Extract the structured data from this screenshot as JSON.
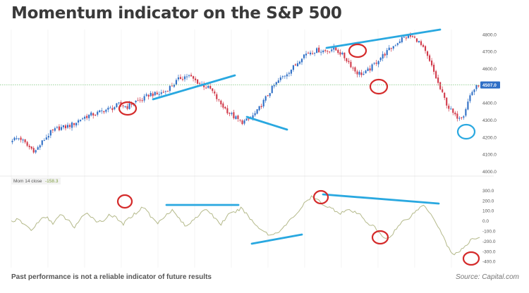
{
  "page": {
    "title": "Momentum indicator on the S&P 500",
    "footer_note": "Past performance is not a reliable indicator of future results",
    "source": "Source: Capital.com"
  },
  "colors": {
    "up_candle": "#2f6fc6",
    "down_candle": "#d13a4a",
    "momentum_line": "#b4b98a",
    "trend_line": "#29a8e0",
    "circle_red": "#d42a2a",
    "circle_blue": "#29a8e0",
    "current_price_line": "#7fc77f",
    "price_tag": "#2f6fc6",
    "grid": "#ececec"
  },
  "chart_data": [
    {
      "type": "candlestick",
      "title": "",
      "series": [
        {
          "name": "S&P 500",
          "values": []
        }
      ],
      "ylim": [
        4000,
        4830
      ],
      "y_ticks": [
        "4800.0",
        "4700.0",
        "4600.0",
        "4500.0",
        "4400.0",
        "4300.0",
        "4200.0",
        "4100.0",
        "4000.0"
      ],
      "current_price_label": "4507.0",
      "current_price": 4507,
      "candle_count": 220,
      "approx_closes": [
        4190,
        4198,
        4150,
        4120,
        4180,
        4230,
        4255,
        4262,
        4280,
        4310,
        4330,
        4340,
        4360,
        4370,
        4395,
        4378,
        4410,
        4420,
        4455,
        4452,
        4470,
        4510,
        4548,
        4562,
        4530,
        4505,
        4480,
        4410,
        4360,
        4320,
        4290,
        4305,
        4350,
        4420,
        4490,
        4540,
        4580,
        4620,
        4680,
        4700,
        4710,
        4705,
        4720,
        4690,
        4640,
        4580,
        4570,
        4610,
        4660,
        4700,
        4740,
        4780,
        4790,
        4770,
        4700,
        4600,
        4480,
        4380,
        4320,
        4330,
        4460,
        4510
      ],
      "legend": "none",
      "grid": true
    },
    {
      "type": "line",
      "title": "",
      "series": [
        {
          "name": "Mom 14 close",
          "values": []
        }
      ],
      "legend_label": "Mom 14 close",
      "legend_value": "-158.3",
      "ylim": [
        -430,
        320
      ],
      "y_ticks": [
        "300.0",
        "200.0",
        "100.0",
        "0.0",
        "-100.0",
        "-200.0",
        "-300.0",
        "-400.0"
      ],
      "approx_values": [
        0,
        15,
        -40,
        -90,
        10,
        40,
        -20,
        60,
        20,
        -60,
        30,
        80,
        10,
        -10,
        70,
        30,
        -30,
        40,
        90,
        150,
        40,
        -20,
        60,
        110,
        30,
        -60,
        20,
        70,
        120,
        40,
        -30,
        60,
        90,
        130,
        40,
        -40,
        -90,
        -140,
        -110,
        -60,
        20,
        90,
        180,
        240,
        200,
        150,
        120,
        80,
        110,
        90,
        60,
        -20,
        -60,
        -150,
        -170,
        -80,
        0,
        40,
        110,
        160,
        80,
        -40,
        -180,
        -330,
        -300,
        -250,
        -170,
        -158
      ],
      "legend": "top-left",
      "grid": true
    }
  ]
}
